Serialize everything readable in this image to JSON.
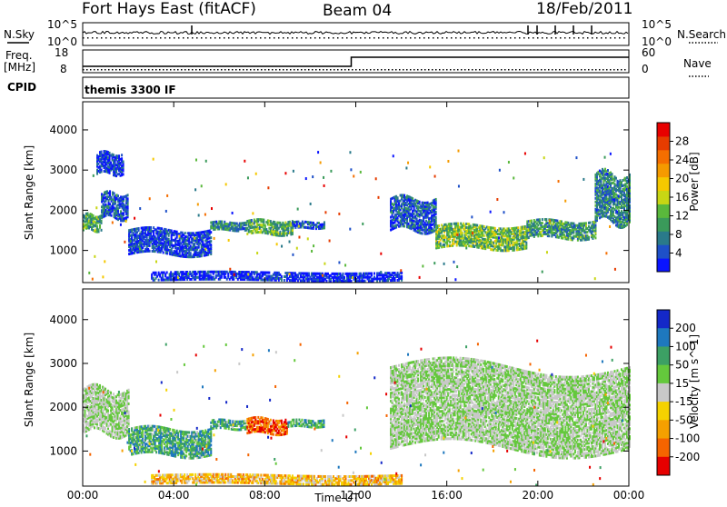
{
  "header": {
    "station": "Fort Hays East (fitACF)",
    "beam": "Beam 04",
    "date": "18/Feb/2011"
  },
  "summary_panels": {
    "nsky": {
      "label": "N.Sky",
      "ticks": [
        "10^5",
        "10^0"
      ]
    },
    "nsearch": {
      "label": "N.Search",
      "ticks": [
        "10^5",
        "10^0"
      ]
    },
    "freq": {
      "label": "Freq.",
      "unit": "[MHz]",
      "ticks": [
        "18",
        "8"
      ]
    },
    "nave": {
      "label": "Nave",
      "ticks": [
        "60",
        "0"
      ]
    },
    "cpid": {
      "label": "CPID",
      "text": "themis 3300 IF"
    }
  },
  "chart_data": [
    {
      "type": "heatmap",
      "name": "Power",
      "xlabel": "",
      "ylabel": "Slant Range [km]",
      "yticks": [
        "1000",
        "2000",
        "3000",
        "4000"
      ],
      "ylim": [
        200,
        4700
      ],
      "xlim": [
        0,
        24
      ],
      "colorbar": {
        "label": "Power [dB]",
        "ticks": [
          "4",
          "8",
          "12",
          "16",
          "20",
          "24",
          "28"
        ],
        "colors": [
          "#0a14ff",
          "#1e50c8",
          "#2a7a8a",
          "#3a9a5a",
          "#5ab83c",
          "#c8d614",
          "#f5c800",
          "#f59a00",
          "#f56e00",
          "#e63c00",
          "#e80000"
        ]
      },
      "regions": [
        {
          "t0": 0.0,
          "t1": 0.8,
          "r0": 1500,
          "r1": 1900,
          "level": 0.35
        },
        {
          "t0": 0.8,
          "t1": 2.0,
          "r0": 1800,
          "r1": 2400,
          "level": 0.15
        },
        {
          "t0": 0.6,
          "t1": 1.8,
          "r0": 2900,
          "r1": 3400,
          "level": 0.1
        },
        {
          "t0": 2.0,
          "t1": 5.6,
          "r0": 900,
          "r1": 1500,
          "level": 0.1
        },
        {
          "t0": 5.6,
          "t1": 7.2,
          "r0": 1500,
          "r1": 1700,
          "level": 0.25
        },
        {
          "t0": 7.2,
          "t1": 9.2,
          "r0": 1400,
          "r1": 1750,
          "level": 0.35
        },
        {
          "t0": 9.2,
          "t1": 10.6,
          "r0": 1550,
          "r1": 1700,
          "level": 0.15
        },
        {
          "t0": 13.5,
          "t1": 15.5,
          "r0": 1500,
          "r1": 2300,
          "level": 0.15
        },
        {
          "t0": 15.5,
          "t1": 19.5,
          "r0": 1050,
          "r1": 1600,
          "level": 0.4
        },
        {
          "t0": 19.5,
          "t1": 22.5,
          "r0": 1300,
          "r1": 1750,
          "level": 0.3
        },
        {
          "t0": 22.5,
          "t1": 24.0,
          "r0": 1700,
          "r1": 2900,
          "level": 0.25
        },
        {
          "t0": 3.0,
          "t1": 14.0,
          "r0": 250,
          "r1": 450,
          "level": 0.05
        }
      ]
    },
    {
      "type": "heatmap",
      "name": "Velocity",
      "xlabel": "Time UT",
      "ylabel": "Slant Range [km]",
      "xticks": [
        "00:00",
        "04:00",
        "08:00",
        "12:00",
        "16:00",
        "20:00",
        "00:00"
      ],
      "yticks": [
        "1000",
        "2000",
        "3000",
        "4000"
      ],
      "ylim": [
        200,
        4700
      ],
      "xlim": [
        0,
        24
      ],
      "colorbar": {
        "label": "Velocity [m s^-1]",
        "ticks": [
          "200",
          "100",
          "50",
          "15",
          "-15",
          "-50",
          "-100",
          "-200"
        ],
        "colors": [
          "#1428c8",
          "#1e78be",
          "#3ca064",
          "#64c83c",
          "#c8c8c8",
          "#f5d200",
          "#f5a000",
          "#f56400",
          "#e60000"
        ]
      },
      "regions": [
        {
          "t0": 0.0,
          "t1": 2.0,
          "r0": 1400,
          "r1": 2400,
          "level": 0.5
        },
        {
          "t0": 2.0,
          "t1": 5.6,
          "r0": 900,
          "r1": 1500,
          "level": 0.3
        },
        {
          "t0": 5.6,
          "t1": 7.2,
          "r0": 1500,
          "r1": 1700,
          "level": 0.3
        },
        {
          "t0": 7.2,
          "t1": 9.0,
          "r0": 1400,
          "r1": 1750,
          "level": 0.85
        },
        {
          "t0": 9.0,
          "t1": 10.6,
          "r0": 1550,
          "r1": 1700,
          "level": 0.3
        },
        {
          "t0": 13.5,
          "t1": 24.0,
          "r0": 1050,
          "r1": 2900,
          "level": 0.5
        },
        {
          "t0": 3.0,
          "t1": 14.0,
          "r0": 250,
          "r1": 450,
          "level": 0.65
        }
      ]
    }
  ]
}
